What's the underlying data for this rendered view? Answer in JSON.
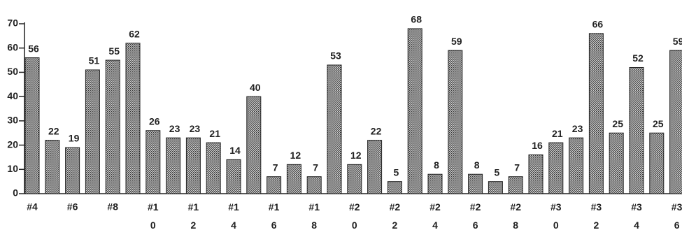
{
  "chart_data": {
    "type": "bar",
    "categories": [
      "#4",
      null,
      "#6",
      null,
      "#8",
      null,
      "#10",
      null,
      "#12",
      null,
      "#14",
      null,
      "#16",
      null,
      "#18",
      null,
      "#20",
      null,
      "#22",
      null,
      "#24",
      null,
      "#26",
      null,
      "#28",
      null,
      "#30",
      null,
      "#32",
      null,
      "#34",
      null,
      "#36"
    ],
    "values": [
      56,
      22,
      19,
      51,
      55,
      62,
      26,
      23,
      23,
      21,
      14,
      40,
      7,
      12,
      7,
      53,
      12,
      22,
      5,
      68,
      8,
      59,
      8,
      5,
      7,
      16,
      21,
      23,
      66,
      25,
      52,
      25,
      59
    ],
    "color": "#8c8c8c",
    "ylim": [
      0,
      70
    ],
    "yticks": [
      0,
      10,
      20,
      30,
      40,
      50,
      60,
      70
    ]
  }
}
